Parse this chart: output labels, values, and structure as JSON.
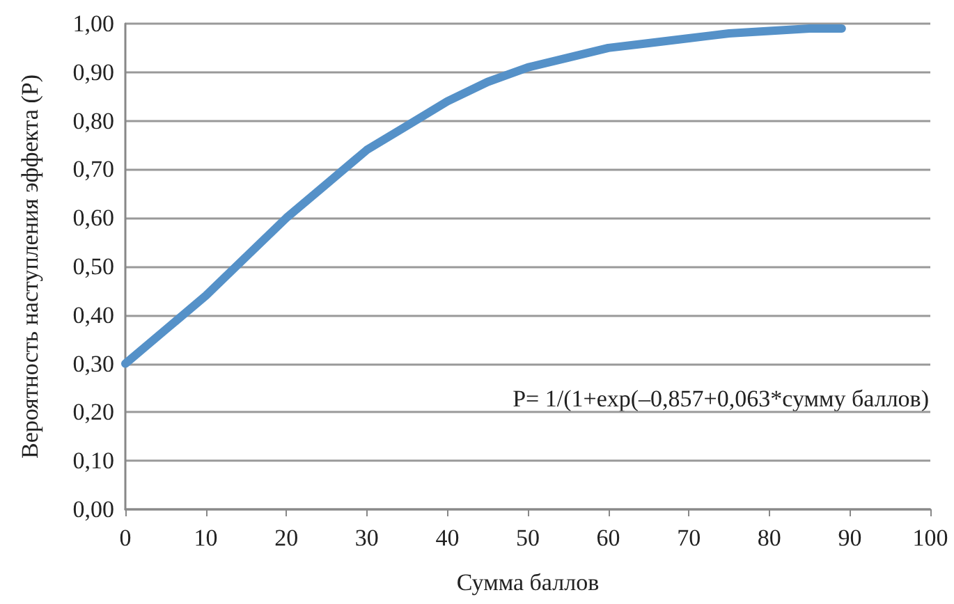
{
  "chart_data": {
    "type": "line",
    "xlabel": "Сумма баллов",
    "ylabel": "Вероятность наступления эффекта (P)",
    "annotations": [
      "P= 1/(1+exp(–0,857+0,063*сумму баллов)"
    ],
    "x": [
      0,
      5,
      10,
      15,
      20,
      25,
      30,
      35,
      40,
      45,
      50,
      55,
      60,
      65,
      70,
      75,
      80,
      85,
      89
    ],
    "series": [
      {
        "color": "#5591c8",
        "values": [
          0.3,
          0.37,
          0.44,
          0.52,
          0.6,
          0.67,
          0.74,
          0.79,
          0.84,
          0.88,
          0.91,
          0.93,
          0.95,
          0.96,
          0.97,
          0.98,
          0.985,
          0.99,
          0.99
        ]
      }
    ],
    "xlim": [
      0,
      100
    ],
    "xticks": [
      0,
      10,
      20,
      30,
      40,
      50,
      60,
      70,
      80,
      90,
      100
    ],
    "ylim": [
      0,
      1
    ],
    "yticks": [
      {
        "value": 0,
        "label": "0,00"
      },
      {
        "value": 0.1,
        "label": "0,10"
      },
      {
        "value": 0.2,
        "label": "0,20"
      },
      {
        "value": 0.3,
        "label": "0,30"
      },
      {
        "value": 0.4,
        "label": "0,40"
      },
      {
        "value": 0.5,
        "label": "0,50"
      },
      {
        "value": 0.6,
        "label": "0,60"
      },
      {
        "value": 0.7,
        "label": "0,70"
      },
      {
        "value": 0.8,
        "label": "0,80"
      },
      {
        "value": 0.9,
        "label": "0,90"
      },
      {
        "value": 1,
        "label": "1,00"
      }
    ],
    "grid": "y",
    "marker": "none",
    "line_style": "solid"
  }
}
